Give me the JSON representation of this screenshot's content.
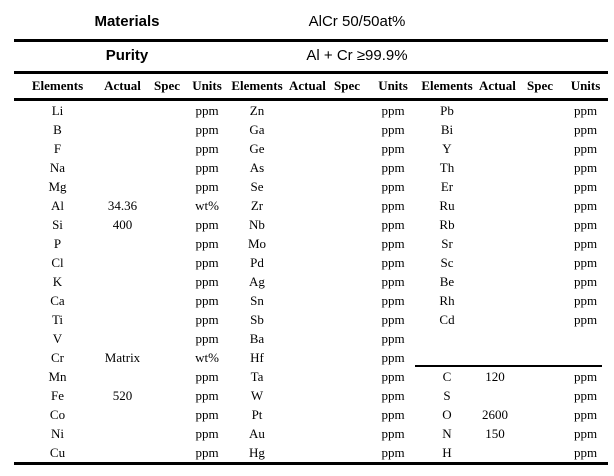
{
  "style": {
    "text_color": "#000000",
    "background_color": "#ffffff",
    "rule_color": "#000000"
  },
  "meta_rows": [
    {
      "label": "Materials",
      "value": "AlCr 50/50at%"
    },
    {
      "label": "Purity",
      "value": "Al + Cr ≥99.9%"
    }
  ],
  "table": {
    "groups": 3,
    "column_headers": [
      "Elements",
      "Actual",
      "Spec",
      "Units"
    ],
    "group3_separator_after_row": 14,
    "rows": [
      [
        [
          "Li",
          "",
          "",
          "ppm"
        ],
        [
          "Zn",
          "",
          "",
          "ppm"
        ],
        [
          "Pb",
          "",
          "",
          "ppm"
        ]
      ],
      [
        [
          "B",
          "",
          "",
          "ppm"
        ],
        [
          "Ga",
          "",
          "",
          "ppm"
        ],
        [
          "Bi",
          "",
          "",
          "ppm"
        ]
      ],
      [
        [
          "F",
          "",
          "",
          "ppm"
        ],
        [
          "Ge",
          "",
          "",
          "ppm"
        ],
        [
          "Y",
          "",
          "",
          "ppm"
        ]
      ],
      [
        [
          "Na",
          "",
          "",
          "ppm"
        ],
        [
          "As",
          "",
          "",
          "ppm"
        ],
        [
          "Th",
          "",
          "",
          "ppm"
        ]
      ],
      [
        [
          "Mg",
          "",
          "",
          "ppm"
        ],
        [
          "Se",
          "",
          "",
          "ppm"
        ],
        [
          "Er",
          "",
          "",
          "ppm"
        ]
      ],
      [
        [
          "Al",
          "34.36",
          "",
          "wt%"
        ],
        [
          "Zr",
          "",
          "",
          "ppm"
        ],
        [
          "Ru",
          "",
          "",
          "ppm"
        ]
      ],
      [
        [
          "Si",
          "400",
          "",
          "ppm"
        ],
        [
          "Nb",
          "",
          "",
          "ppm"
        ],
        [
          "Rb",
          "",
          "",
          "ppm"
        ]
      ],
      [
        [
          "P",
          "",
          "",
          "ppm"
        ],
        [
          "Mo",
          "",
          "",
          "ppm"
        ],
        [
          "Sr",
          "",
          "",
          "ppm"
        ]
      ],
      [
        [
          "Cl",
          "",
          "",
          "ppm"
        ],
        [
          "Pd",
          "",
          "",
          "ppm"
        ],
        [
          "Sc",
          "",
          "",
          "ppm"
        ]
      ],
      [
        [
          "K",
          "",
          "",
          "ppm"
        ],
        [
          "Ag",
          "",
          "",
          "ppm"
        ],
        [
          "Be",
          "",
          "",
          "ppm"
        ]
      ],
      [
        [
          "Ca",
          "",
          "",
          "ppm"
        ],
        [
          "Sn",
          "",
          "",
          "ppm"
        ],
        [
          "Rh",
          "",
          "",
          "ppm"
        ]
      ],
      [
        [
          "Ti",
          "",
          "",
          "ppm"
        ],
        [
          "Sb",
          "",
          "",
          "ppm"
        ],
        [
          "Cd",
          "",
          "",
          "ppm"
        ]
      ],
      [
        [
          "V",
          "",
          "",
          "ppm"
        ],
        [
          "Ba",
          "",
          "",
          "ppm"
        ],
        [
          "",
          "",
          "",
          ""
        ]
      ],
      [
        [
          "Cr",
          "Matrix",
          "",
          "wt%"
        ],
        [
          "Hf",
          "",
          "",
          "ppm"
        ],
        [
          "",
          "",
          "",
          ""
        ]
      ],
      [
        [
          "Mn",
          "",
          "",
          "ppm"
        ],
        [
          "Ta",
          "",
          "",
          "ppm"
        ],
        [
          "C",
          "120",
          "",
          "ppm"
        ]
      ],
      [
        [
          "Fe",
          "520",
          "",
          "ppm"
        ],
        [
          "W",
          "",
          "",
          "ppm"
        ],
        [
          "S",
          "",
          "",
          "ppm"
        ]
      ],
      [
        [
          "Co",
          "",
          "",
          "ppm"
        ],
        [
          "Pt",
          "",
          "",
          "ppm"
        ],
        [
          "O",
          "2600",
          "",
          "ppm"
        ]
      ],
      [
        [
          "Ni",
          "",
          "",
          "ppm"
        ],
        [
          "Au",
          "",
          "",
          "ppm"
        ],
        [
          "N",
          "150",
          "",
          "ppm"
        ]
      ],
      [
        [
          "Cu",
          "",
          "",
          "ppm"
        ],
        [
          "Hg",
          "",
          "",
          "ppm"
        ],
        [
          "H",
          "",
          "",
          "ppm"
        ]
      ]
    ]
  }
}
